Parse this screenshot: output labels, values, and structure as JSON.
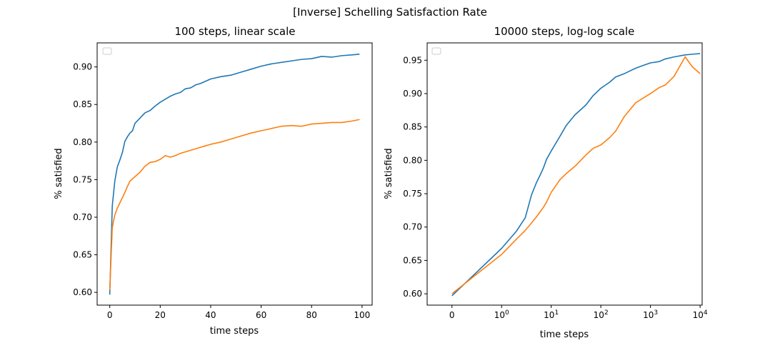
{
  "figure": {
    "suptitle": "[Inverse] Schelling Satisfaction Rate",
    "colors": {
      "series1": "#1f77b4",
      "series2": "#ff7f0e"
    }
  },
  "chart_data": [
    {
      "type": "line",
      "title": "100 steps, linear scale",
      "xlabel": "time steps",
      "ylabel": "% satisfied",
      "xscale": "linear",
      "xlim": [
        -5,
        104
      ],
      "ylim": [
        0.583,
        0.932
      ],
      "xticks": [
        0,
        20,
        40,
        60,
        80,
        100
      ],
      "xtick_labels": [
        "0",
        "20",
        "40",
        "60",
        "80",
        "100"
      ],
      "yticks": [
        0.6,
        0.65,
        0.7,
        0.75,
        0.8,
        0.85,
        0.9
      ],
      "ytick_labels": [
        "0.60",
        "0.65",
        "0.70",
        "0.75",
        "0.80",
        "0.85",
        "0.90"
      ],
      "legend": "top-left (empty)",
      "grid": false,
      "series": [
        {
          "color": "#1f77b4",
          "x": [
            0,
            1,
            2,
            3,
            4,
            5,
            6,
            7,
            8,
            9,
            10,
            12,
            14,
            16,
            18,
            20,
            22,
            24,
            26,
            28,
            30,
            32,
            34,
            36,
            38,
            40,
            44,
            48,
            52,
            56,
            60,
            64,
            68,
            72,
            76,
            80,
            84,
            88,
            92,
            96,
            99
          ],
          "y": [
            0.597,
            0.715,
            0.748,
            0.767,
            0.776,
            0.786,
            0.801,
            0.807,
            0.812,
            0.815,
            0.825,
            0.832,
            0.839,
            0.842,
            0.848,
            0.853,
            0.857,
            0.861,
            0.864,
            0.866,
            0.871,
            0.872,
            0.876,
            0.878,
            0.881,
            0.884,
            0.887,
            0.889,
            0.893,
            0.897,
            0.901,
            0.904,
            0.906,
            0.908,
            0.91,
            0.911,
            0.914,
            0.913,
            0.915,
            0.916,
            0.917
          ]
        },
        {
          "color": "#ff7f0e",
          "x": [
            0,
            1,
            2,
            3,
            4,
            5,
            6,
            7,
            8,
            9,
            10,
            12,
            14,
            16,
            18,
            20,
            22,
            24,
            26,
            28,
            30,
            32,
            34,
            36,
            38,
            40,
            44,
            48,
            52,
            56,
            60,
            64,
            68,
            72,
            76,
            80,
            84,
            88,
            92,
            96,
            99
          ],
          "y": [
            0.603,
            0.686,
            0.703,
            0.712,
            0.719,
            0.726,
            0.733,
            0.741,
            0.748,
            0.751,
            0.754,
            0.76,
            0.768,
            0.773,
            0.774,
            0.777,
            0.782,
            0.78,
            0.782,
            0.785,
            0.787,
            0.789,
            0.791,
            0.793,
            0.795,
            0.797,
            0.8,
            0.804,
            0.808,
            0.812,
            0.815,
            0.818,
            0.821,
            0.822,
            0.821,
            0.824,
            0.825,
            0.826,
            0.826,
            0.828,
            0.83
          ]
        }
      ]
    },
    {
      "type": "line",
      "title": "10000 steps, log-log scale",
      "xlabel": "time steps",
      "ylabel": "% satisfied",
      "xscale": "symlog",
      "xlim": [
        -0.5,
        11000
      ],
      "ylim": [
        0.583,
        0.976
      ],
      "xticks": [
        0,
        1,
        10,
        100,
        1000,
        10000
      ],
      "xtick_labels": [
        "0",
        "10",
        "10",
        "10",
        "10",
        "10"
      ],
      "xtick_exponents": [
        "",
        "0",
        "1",
        "2",
        "3",
        "4"
      ],
      "yticks": [
        0.6,
        0.65,
        0.7,
        0.75,
        0.8,
        0.85,
        0.9,
        0.95
      ],
      "ytick_labels": [
        "0.60",
        "0.65",
        "0.70",
        "0.75",
        "0.80",
        "0.85",
        "0.90",
        "0.95"
      ],
      "legend": "top-left (empty)",
      "grid": false,
      "series": [
        {
          "color": "#1f77b4",
          "x": [
            0,
            1,
            2,
            3,
            4,
            5,
            6,
            7,
            8,
            10,
            15,
            20,
            30,
            50,
            70,
            100,
            150,
            200,
            300,
            500,
            700,
            1000,
            1500,
            2000,
            3000,
            5000,
            7000,
            10000
          ],
          "y": [
            0.597,
            0.668,
            0.694,
            0.714,
            0.748,
            0.766,
            0.778,
            0.789,
            0.801,
            0.814,
            0.836,
            0.852,
            0.868,
            0.883,
            0.897,
            0.908,
            0.917,
            0.925,
            0.93,
            0.938,
            0.942,
            0.946,
            0.948,
            0.952,
            0.955,
            0.958,
            0.959,
            0.96
          ]
        },
        {
          "color": "#ff7f0e",
          "x": [
            0,
            1,
            2,
            3,
            4,
            5,
            6,
            7,
            8,
            10,
            15,
            20,
            30,
            50,
            70,
            100,
            150,
            200,
            300,
            500,
            700,
            1000,
            1500,
            2000,
            3000,
            5000,
            7000,
            10000
          ],
          "y": [
            0.6,
            0.659,
            0.682,
            0.695,
            0.706,
            0.715,
            0.723,
            0.73,
            0.737,
            0.752,
            0.771,
            0.78,
            0.791,
            0.808,
            0.818,
            0.823,
            0.834,
            0.844,
            0.866,
            0.886,
            0.893,
            0.9,
            0.909,
            0.913,
            0.926,
            0.955,
            0.94,
            0.93
          ]
        }
      ]
    }
  ]
}
